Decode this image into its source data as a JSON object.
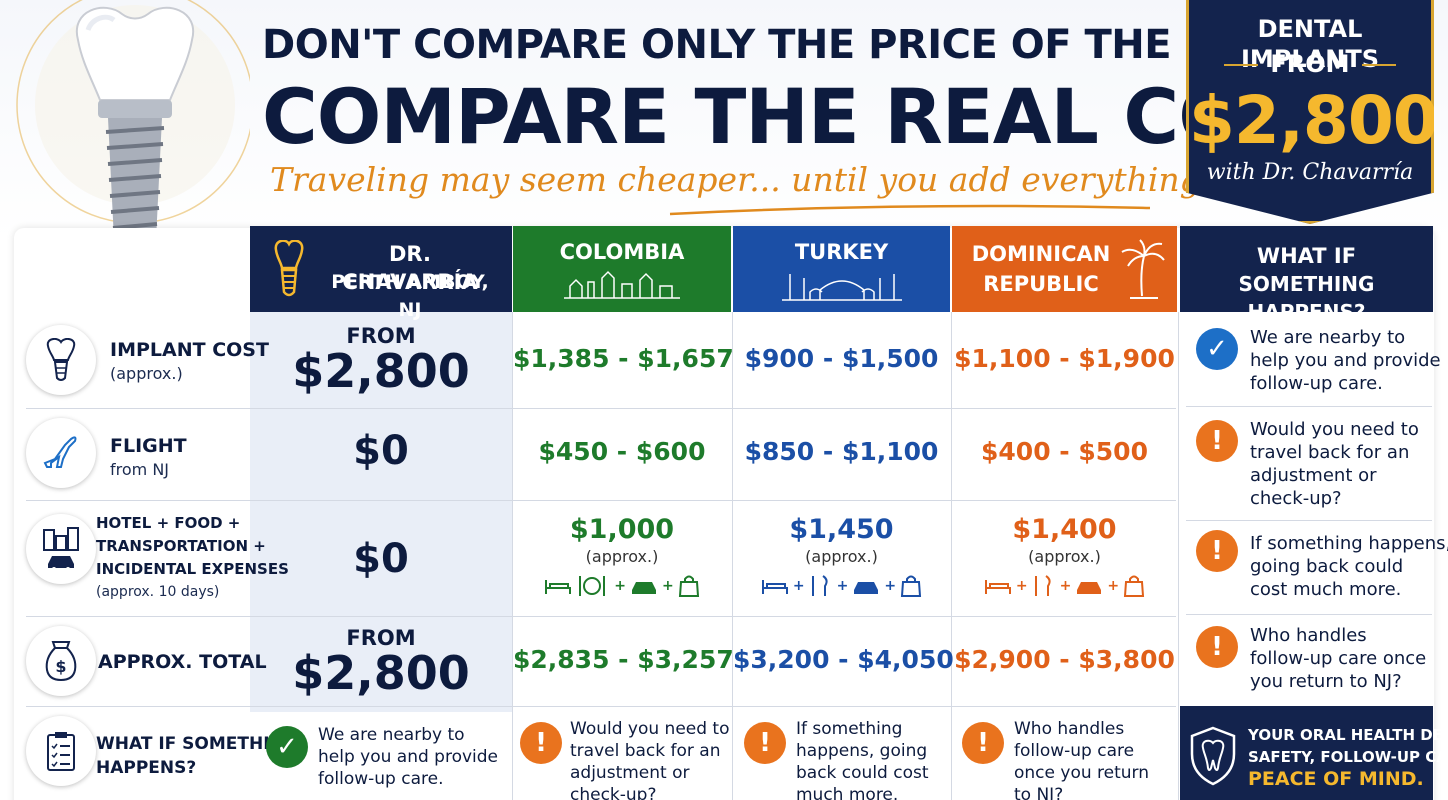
{
  "header": {
    "line1": "DON'T COMPARE ONLY THE PRICE OF THE IMPLANT.",
    "line2": "COMPARE THE REAL COST.",
    "tagline": "Traveling may seem cheaper... until you add everything up."
  },
  "badge": {
    "title": "DENTAL IMPLANTS",
    "from": "FROM",
    "price": "$2,800",
    "with": "with Dr. Chavarría"
  },
  "columns": {
    "dr": {
      "line1": "DR. CHAVARRÍA",
      "line2": "PERTH AMBOY, NJ"
    },
    "colombia": "COLOMBIA",
    "turkey": "TURKEY",
    "dominican": {
      "line1": "DOMINICAN",
      "line2": "REPUBLIC"
    },
    "whatif": {
      "line1": "WHAT IF",
      "line2": "SOMETHING HAPPENS?"
    }
  },
  "rows": {
    "implant": {
      "label": "IMPLANT COST",
      "sub": "(approx.)",
      "dr_from": "FROM",
      "dr": "$2,800",
      "colombia": "$1,385 - $1,657",
      "turkey": "$900 - $1,500",
      "dominican": "$1,100 - $1,900"
    },
    "flight": {
      "label": "FLIGHT",
      "sub": "from NJ",
      "dr": "$0",
      "colombia": "$450 - $600",
      "turkey": "$850 - $1,100",
      "dominican": "$400 - $500"
    },
    "hotel": {
      "label1": "HOTEL + FOOD +",
      "label2": "TRANSPORTATION +",
      "label3": "INCIDENTAL EXPENSES",
      "sub": "(approx. 10 days)",
      "dr": "$0",
      "colombia": "$1,000",
      "turkey": "$1,450",
      "dominican": "$1,400",
      "approx": "(approx.)"
    },
    "total": {
      "label": "APPROX. TOTAL",
      "dr_from": "FROM",
      "dr": "$2,800",
      "colombia": "$2,835 - $3,257",
      "turkey": "$3,200 - $4,050",
      "dominican": "$2,900 - $3,800"
    },
    "whatif": {
      "label1": "WHAT IF SOMETHING",
      "label2": "HAPPENS?",
      "dr": [
        "We are nearby to",
        "help you and provide",
        "follow-up care."
      ],
      "colombia": [
        "Would you need to",
        "travel back for an",
        "adjustment or",
        "check-up?"
      ],
      "turkey": [
        "If something",
        "happens, going",
        "back could cost",
        "much more."
      ],
      "dominican": [
        "Who handles",
        "follow-up care",
        "once you return",
        "to NJ?"
      ]
    }
  },
  "right_panel": [
    {
      "icon": "check",
      "lines": [
        "We are nearby to",
        "help you and provide",
        "follow-up care."
      ]
    },
    {
      "icon": "alert",
      "lines": [
        "Would you need to",
        "travel back for an",
        "adjustment or",
        "check-up?"
      ]
    },
    {
      "icon": "alert",
      "lines": [
        "If something happens,",
        "going back could",
        "cost much more."
      ]
    },
    {
      "icon": "alert",
      "lines": [
        "Who handles",
        "follow-up care once",
        "you return to NJ?"
      ]
    }
  ],
  "footer": {
    "line1": "YOUR ORAL HEALTH DESERVES",
    "line2": "SAFETY, FOLLOW-UP CARE, AND",
    "line3": "PEACE OF MIND."
  },
  "colors": {
    "navy": "#13234d",
    "green": "#1e7b2b",
    "blue": "#1b4fa6",
    "orange": "#e06019",
    "gold": "#f5b82e"
  }
}
